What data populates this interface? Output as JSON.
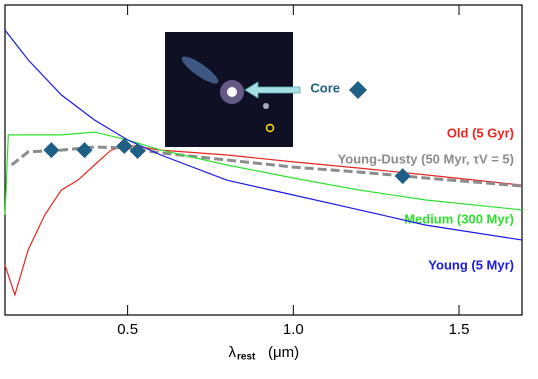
{
  "chart_data": {
    "type": "line",
    "x_label": "λ",
    "x_label_sub": "rest",
    "x_label_unit": "(μm)",
    "xlim": [
      0.13,
      1.69
    ],
    "ylim": [
      0,
      100
    ],
    "xticks": [
      0.5,
      {
        "value": 1,
        "label": "1.0"
      },
      1.5
    ],
    "series": [
      {
        "name": "Old (5 Gyr)",
        "color": "#e8251f",
        "dash": false,
        "x": [
          0.13,
          0.16,
          0.2,
          0.25,
          0.3,
          0.35,
          0.4,
          0.45,
          0.5,
          0.6,
          0.8,
          1.0,
          1.2,
          1.4,
          1.69
        ],
        "values": [
          16.1,
          6.5,
          21,
          32.3,
          40.3,
          43.5,
          48.4,
          53.2,
          54.8,
          53.2,
          51.6,
          49.4,
          47.4,
          45.2,
          41.9
        ]
      },
      {
        "name": "Young-Dusty (50 Myr, τV = 5)",
        "color": "#8c8c8c",
        "dash": true,
        "x": [
          0.15,
          0.2,
          0.3,
          0.4,
          0.5,
          0.6,
          0.8,
          1.0,
          1.2,
          1.4,
          1.69
        ],
        "values": [
          48.4,
          52.6,
          53.2,
          54.2,
          53.9,
          52.3,
          50,
          47.7,
          46.1,
          44.2,
          41.6
        ]
      },
      {
        "name": "Medium (300 Myr)",
        "color": "#2ee02e",
        "dash": false,
        "x": [
          0.13,
          0.14,
          0.2,
          0.3,
          0.4,
          0.5,
          0.6,
          0.8,
          1.0,
          1.2,
          1.4,
          1.69
        ],
        "values": [
          32.3,
          58.1,
          58.1,
          58.1,
          59,
          56.5,
          53.2,
          48.4,
          44.2,
          40.3,
          37.1,
          33.9
        ]
      },
      {
        "name": "Young (5 Myr)",
        "color": "#1a1ae0",
        "dash": false,
        "x": [
          0.13,
          0.2,
          0.3,
          0.4,
          0.5,
          0.6,
          0.8,
          1.0,
          1.2,
          1.4,
          1.69
        ],
        "values": [
          91.9,
          82.3,
          71,
          62.9,
          56.5,
          51.6,
          43.5,
          38.7,
          33.9,
          29,
          24.2
        ]
      }
    ],
    "points": {
      "name": "Core",
      "color": "#1f5f86",
      "x": [
        0.27,
        0.37,
        0.49,
        0.53,
        1.33
      ],
      "values": [
        53.2,
        53.2,
        54.5,
        52.9,
        44.8
      ]
    }
  }
}
